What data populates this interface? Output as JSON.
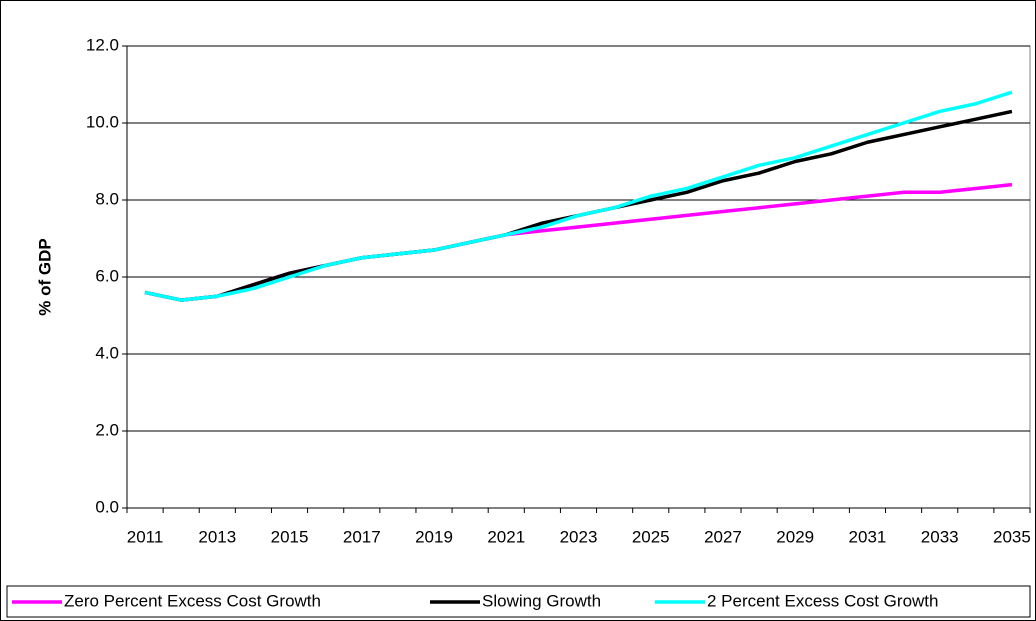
{
  "chart_data": {
    "type": "line",
    "ylabel": "% of GDP",
    "categories": [
      "2011",
      null,
      "2013",
      null,
      "2015",
      null,
      "2017",
      null,
      "2019",
      null,
      "2021",
      null,
      "2023",
      null,
      "2025",
      null,
      "2027",
      null,
      "2029",
      null,
      "2031",
      null,
      "2033",
      null,
      "2035"
    ],
    "series": [
      {
        "name": "Zero Percent Excess Cost Growth",
        "color": "#ff00ff",
        "values": [
          5.6,
          5.4,
          5.5,
          5.8,
          6.1,
          6.3,
          6.5,
          6.6,
          6.7,
          6.9,
          7.1,
          7.2,
          7.3,
          7.4,
          7.5,
          7.6,
          7.7,
          7.8,
          7.9,
          8.0,
          8.1,
          8.2,
          8.2,
          8.3,
          8.4
        ]
      },
      {
        "name": "Slowing Growth",
        "color": "#000000",
        "values": [
          5.6,
          5.4,
          5.5,
          5.8,
          6.1,
          6.3,
          6.5,
          6.6,
          6.7,
          6.9,
          7.1,
          7.4,
          7.6,
          7.8,
          8.0,
          8.2,
          8.5,
          8.7,
          9.0,
          9.2,
          9.5,
          9.7,
          9.9,
          10.1,
          10.3
        ]
      },
      {
        "name": "2 Percent Excess Cost Growth",
        "color": "#00ffff",
        "values": [
          5.6,
          5.4,
          5.5,
          5.7,
          6.0,
          6.3,
          6.5,
          6.6,
          6.7,
          6.9,
          7.1,
          7.3,
          7.6,
          7.8,
          8.1,
          8.3,
          8.6,
          8.9,
          9.1,
          9.4,
          9.7,
          10.0,
          10.3,
          10.5,
          10.8
        ]
      }
    ],
    "ylim": [
      0,
      12
    ],
    "yticks": [
      {
        "value": 0,
        "label": "0.0"
      },
      {
        "value": 2,
        "label": "2.0"
      },
      {
        "value": 4,
        "label": "4.0"
      },
      {
        "value": 6,
        "label": "6.0"
      },
      {
        "value": 8,
        "label": "8.0"
      },
      {
        "value": 10,
        "label": "10.0"
      },
      {
        "value": 12,
        "label": "12.0"
      }
    ],
    "grid": true,
    "legend": "bottom"
  }
}
